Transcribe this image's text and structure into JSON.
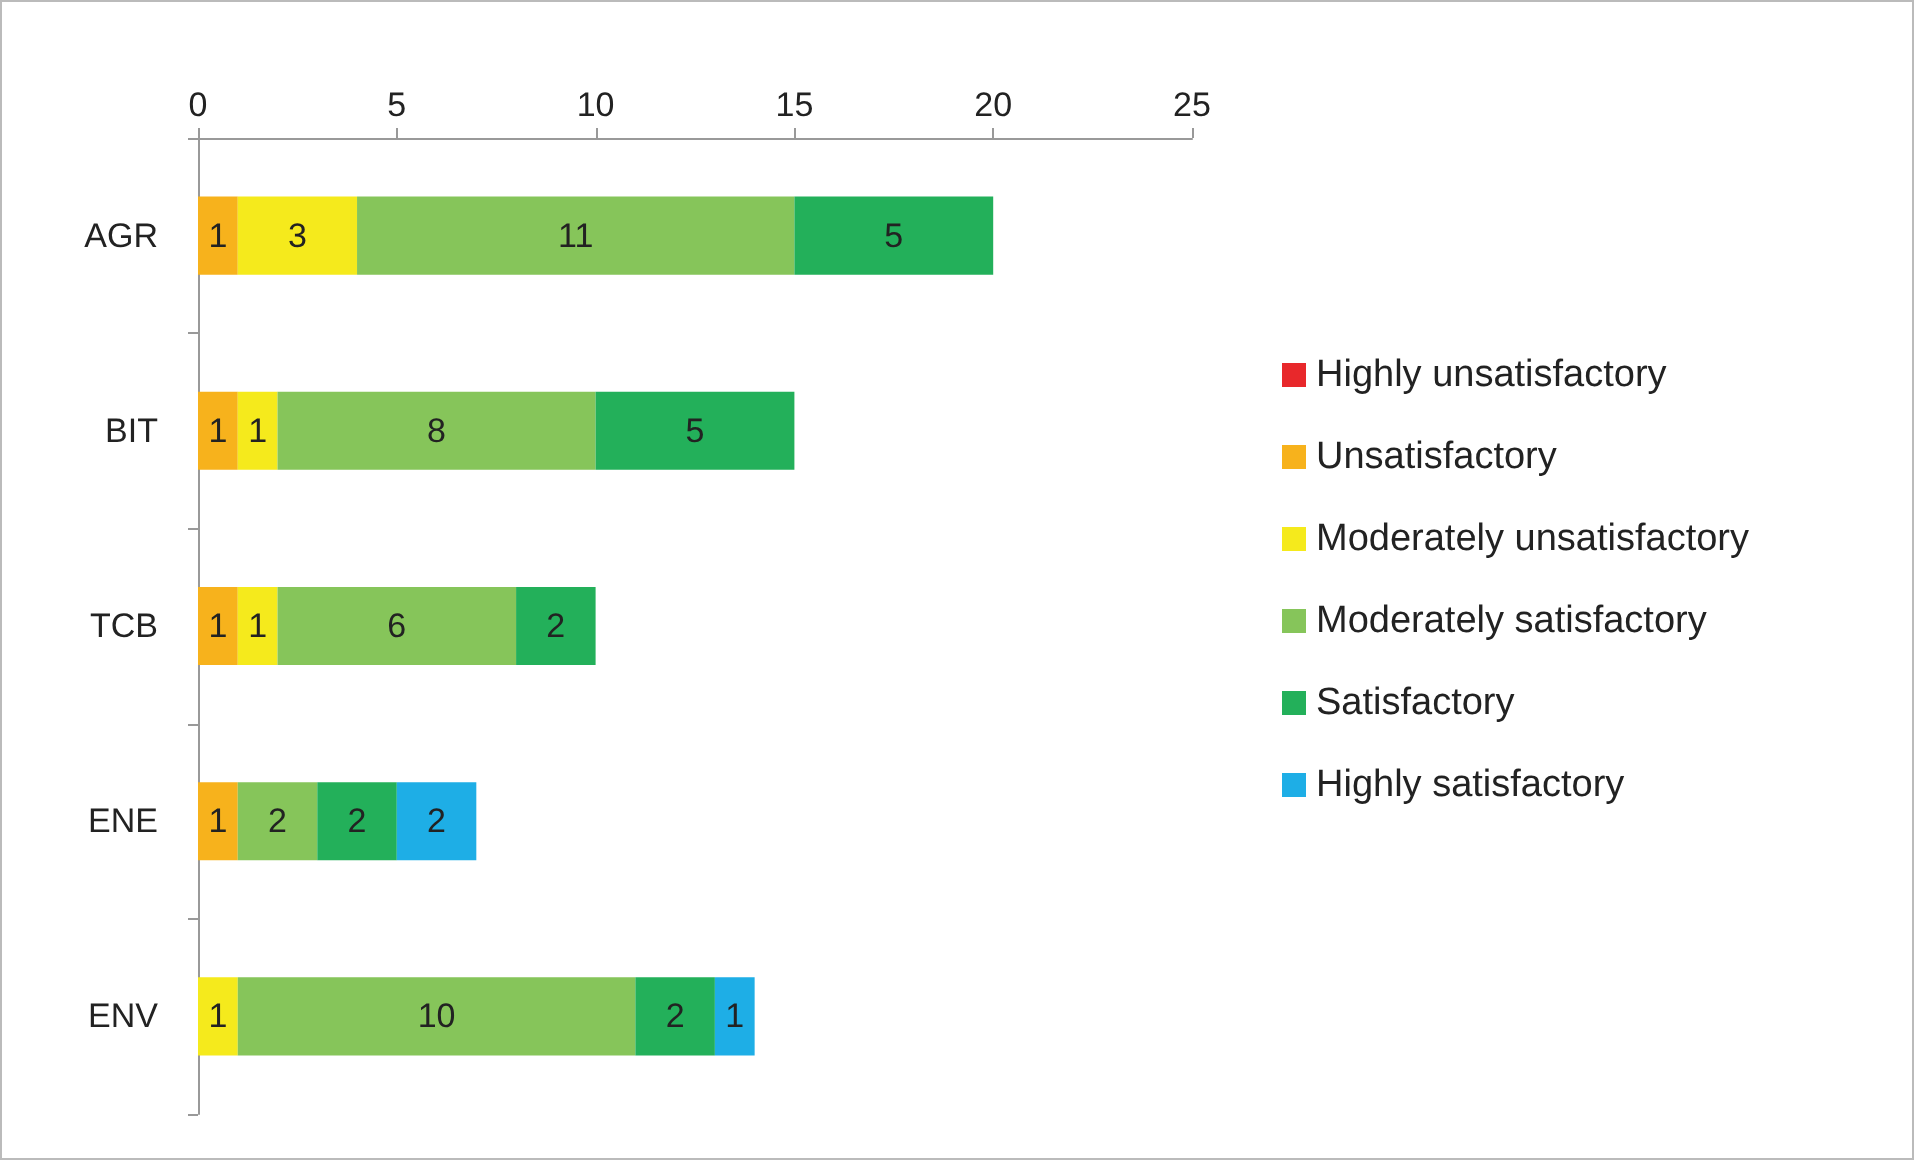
{
  "chart_data": {
    "type": "bar",
    "orientation": "horizontal",
    "stacked": true,
    "data_labels": true,
    "grid": false,
    "legend": "right",
    "categories": [
      "AGR",
      "BIT",
      "TCB",
      "ENE",
      "ENV"
    ],
    "xlim": [
      0,
      25
    ],
    "xticks": [
      0,
      5,
      10,
      15,
      20,
      25
    ],
    "series": [
      {
        "name": "Highly unsatisfactory",
        "color": "#e8282b",
        "values": [
          null,
          null,
          null,
          null,
          null
        ]
      },
      {
        "name": "Unsatisfactory",
        "color": "#f7b21c",
        "values": [
          1,
          1,
          1,
          1,
          null
        ]
      },
      {
        "name": "Moderately unsatisfactory",
        "color": "#f5ea1c",
        "values": [
          3,
          1,
          1,
          null,
          1
        ]
      },
      {
        "name": "Moderately satisfactory",
        "color": "#86c55a",
        "values": [
          11,
          8,
          6,
          2,
          10
        ]
      },
      {
        "name": "Satisfactory",
        "color": "#23b05a",
        "values": [
          5,
          5,
          2,
          2,
          2
        ]
      },
      {
        "name": "Highly satisfactory",
        "color": "#1eaee6",
        "values": [
          null,
          null,
          null,
          2,
          1
        ]
      }
    ]
  }
}
